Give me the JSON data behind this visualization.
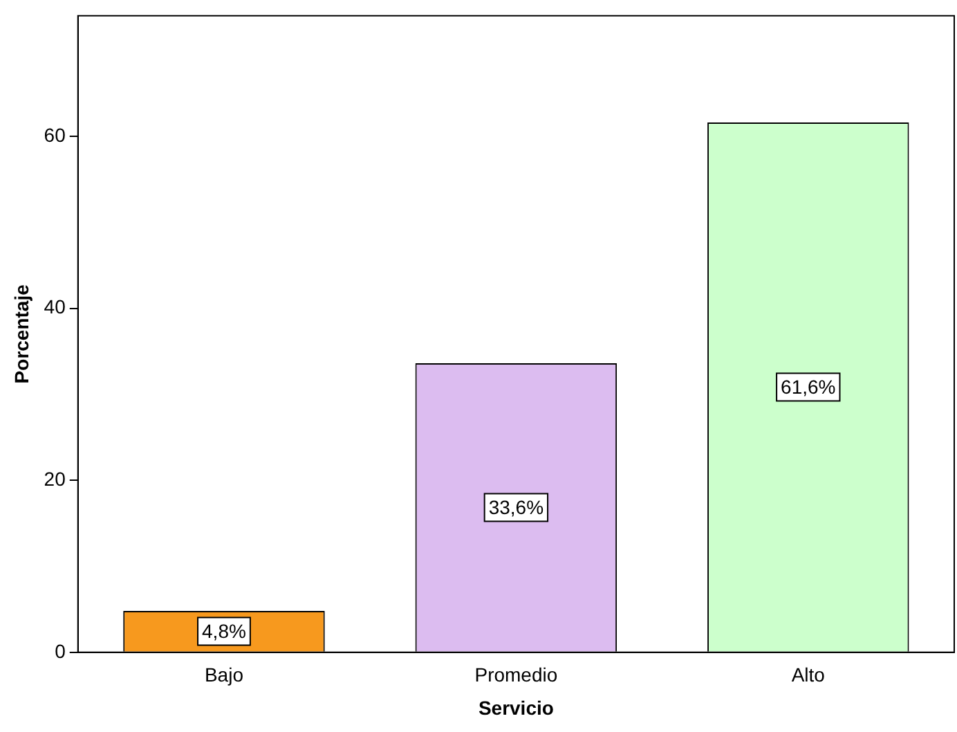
{
  "chart_data": {
    "type": "bar",
    "xlabel": "Servicio",
    "ylabel": "Porcentaje",
    "categories": [
      "Bajo",
      "Promedio",
      "Alto"
    ],
    "values": [
      4.8,
      33.6,
      61.6
    ],
    "colors": [
      "#f7991e",
      "#dcbcf0",
      "#ccffcc"
    ],
    "value_labels": [
      "4,8%",
      "33,6%",
      "61,6%"
    ],
    "ylim": [
      0,
      74
    ],
    "yticks": [
      0,
      20,
      40,
      60
    ],
    "grid": false,
    "legend": false
  }
}
